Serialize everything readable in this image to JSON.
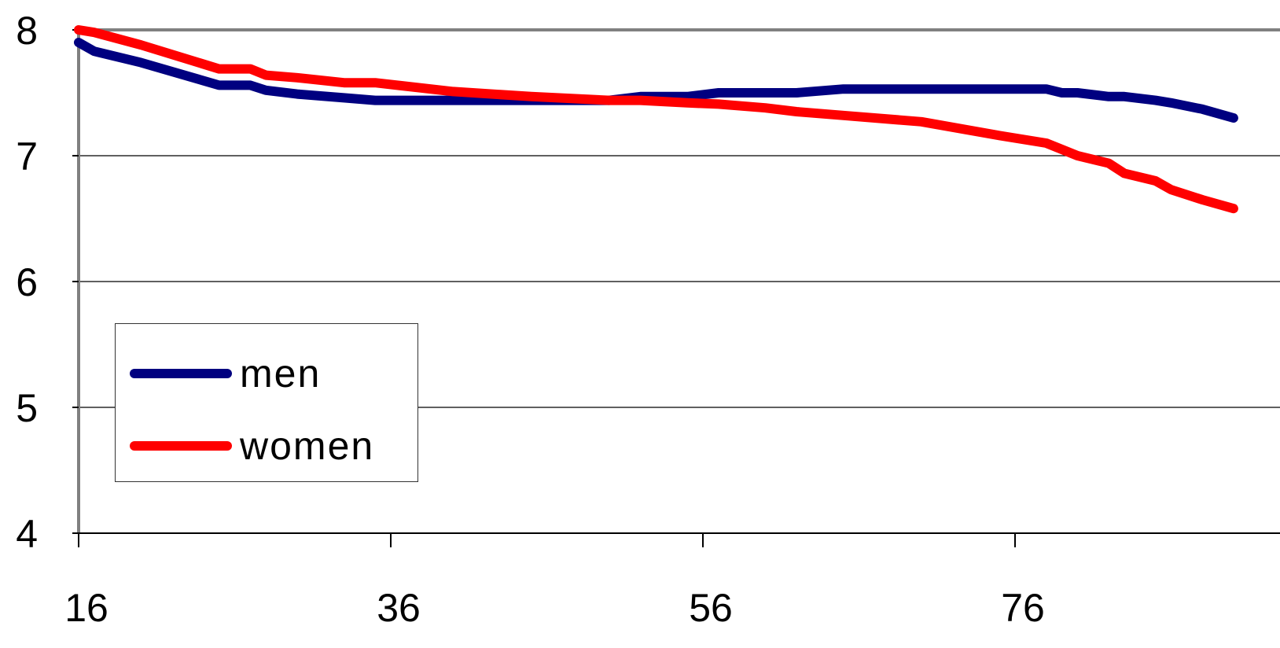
{
  "chart_data": {
    "type": "line",
    "title": "",
    "xlabel": "",
    "ylabel": "",
    "xlim": [
      16,
      90
    ],
    "ylim": [
      4,
      8
    ],
    "x_ticks": [
      "16",
      "36",
      "56",
      "76"
    ],
    "y_ticks": [
      "4",
      "5",
      "6",
      "7",
      "8"
    ],
    "grid": "horizontal",
    "legend": "lower-left",
    "x": [
      16,
      17,
      20,
      25,
      27,
      28,
      30,
      33,
      35,
      40,
      45,
      50,
      52,
      55,
      57,
      60,
      62,
      65,
      70,
      75,
      78,
      79,
      80,
      82,
      83,
      85,
      86,
      88,
      90
    ],
    "series": [
      {
        "name": "men",
        "color": "#000080",
        "values": [
          7.9,
          7.83,
          7.74,
          7.56,
          7.56,
          7.52,
          7.49,
          7.46,
          7.44,
          7.44,
          7.44,
          7.44,
          7.47,
          7.47,
          7.5,
          7.5,
          7.5,
          7.53,
          7.53,
          7.53,
          7.53,
          7.5,
          7.5,
          7.47,
          7.47,
          7.44,
          7.42,
          7.37,
          7.3
        ]
      },
      {
        "name": "women",
        "color": "#ff0000",
        "values": [
          8.0,
          7.98,
          7.88,
          7.69,
          7.69,
          7.64,
          7.62,
          7.58,
          7.58,
          7.51,
          7.47,
          7.44,
          7.44,
          7.42,
          7.41,
          7.38,
          7.35,
          7.32,
          7.27,
          7.16,
          7.1,
          7.05,
          7.0,
          6.94,
          6.86,
          6.8,
          6.73,
          6.65,
          6.58
        ]
      }
    ]
  }
}
